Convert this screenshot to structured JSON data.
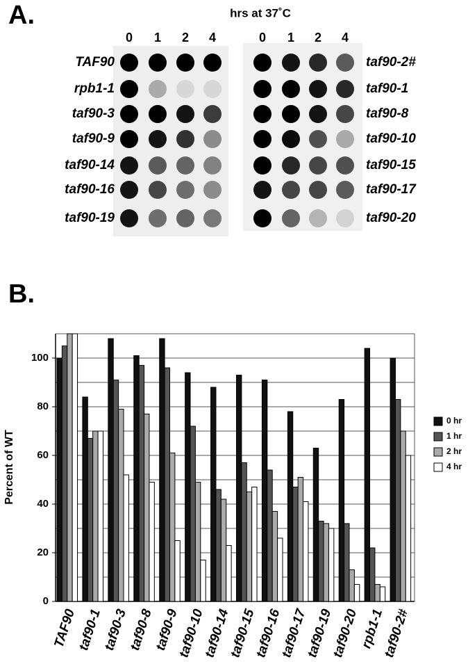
{
  "panel_a": {
    "label": "A.",
    "title": "hrs at 37˚C",
    "left": {
      "columns": [
        "0",
        "1",
        "2",
        "4"
      ],
      "rows": [
        "TAF90",
        "rpb1-1",
        "taf90-3",
        "taf90-9",
        "taf90-14",
        "taf90-16",
        "taf90-19"
      ]
    },
    "right": {
      "columns": [
        "0",
        "1",
        "2",
        "4"
      ],
      "rows": [
        "taf90-2#",
        "taf90-1",
        "taf90-8",
        "taf90-10",
        "taf90-15",
        "taf90-17",
        "taf90-20"
      ]
    }
  },
  "chart_data": {
    "type": "bar",
    "panel_label": "B.",
    "y_label": "Percent of WT",
    "categories": [
      "TAF90",
      "taf90-1",
      "taf90-3",
      "taf90-8",
      "taf90-9",
      "taf90-10",
      "taf90-14",
      "taf90-15",
      "taf90-16",
      "taf90-17",
      "taf90-19",
      "taf90-20",
      "rpb1-1",
      "taf90-2#"
    ],
    "series": [
      {
        "name": "0 hr",
        "color": "#111111",
        "values": [
          100,
          84,
          108,
          101,
          108,
          94,
          88,
          93,
          91,
          78,
          63,
          83,
          104,
          100
        ]
      },
      {
        "name": "1 hr",
        "color": "#555555",
        "values": [
          105,
          67,
          91,
          97,
          96,
          72,
          46,
          57,
          54,
          47,
          33,
          32,
          22,
          83
        ]
      },
      {
        "name": "2 hr",
        "color": "#aaaaaa",
        "values": [
          110,
          70,
          79,
          77,
          61,
          49,
          42,
          45,
          37,
          51,
          32,
          13,
          7,
          70
        ]
      },
      {
        "name": "4 hr",
        "color": "#ffffff",
        "values": [
          110,
          70,
          52,
          49,
          25,
          17,
          23,
          47,
          26,
          41,
          30,
          7,
          6,
          60
        ]
      }
    ],
    "ylim": [
      0,
      110
    ],
    "yticks": [
      0,
      20,
      40,
      60,
      80,
      100
    ],
    "grid_lines": [
      10,
      20,
      30,
      40,
      50,
      60,
      70,
      80,
      90,
      100,
      110
    ],
    "grid": true,
    "legend": "right"
  }
}
